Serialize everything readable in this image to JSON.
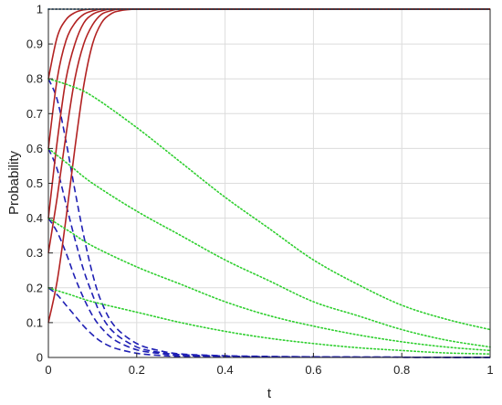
{
  "chart_data": {
    "type": "line",
    "title": "",
    "xlabel": "t",
    "ylabel": "Probability",
    "xlim": [
      0,
      1
    ],
    "ylim": [
      0,
      1
    ],
    "grid": true,
    "x_ticks": [
      "0",
      "0.2",
      "0.4",
      "0.6",
      "0.8",
      "1"
    ],
    "y_ticks": [
      "0",
      "0.1",
      "0.2",
      "0.3",
      "0.4",
      "0.5",
      "0.6",
      "0.7",
      "0.8",
      "0.9",
      "1"
    ],
    "colors": {
      "rising": "#b22222",
      "dashed": "#1f1fb4",
      "dotted": "#2fcf2f"
    },
    "series": [
      {
        "style": "dashed",
        "color": "#1f1fb4",
        "x": [
          0,
          0.02,
          0.04,
          0.06,
          0.08,
          0.1,
          0.12,
          0.15,
          0.2,
          0.25,
          0.3,
          0.4,
          0.5,
          0.7,
          1
        ],
        "y": [
          0.8,
          0.74,
          0.62,
          0.48,
          0.35,
          0.24,
          0.16,
          0.09,
          0.04,
          0.02,
          0.01,
          0.005,
          0.003,
          0.001,
          0
        ]
      },
      {
        "style": "dashed",
        "color": "#1f1fb4",
        "x": [
          0,
          0.02,
          0.04,
          0.06,
          0.08,
          0.1,
          0.12,
          0.15,
          0.2,
          0.25,
          0.3,
          0.4,
          0.5,
          0.7,
          1
        ],
        "y": [
          0.6,
          0.54,
          0.44,
          0.34,
          0.25,
          0.18,
          0.12,
          0.07,
          0.03,
          0.015,
          0.008,
          0.004,
          0.002,
          0.001,
          0
        ]
      },
      {
        "style": "dashed",
        "color": "#1f1fb4",
        "x": [
          0,
          0.02,
          0.04,
          0.06,
          0.08,
          0.1,
          0.12,
          0.15,
          0.2,
          0.25,
          0.3,
          0.4,
          0.5,
          0.7,
          1
        ],
        "y": [
          0.4,
          0.36,
          0.3,
          0.23,
          0.17,
          0.12,
          0.085,
          0.05,
          0.022,
          0.012,
          0.006,
          0.003,
          0.002,
          0.001,
          0
        ]
      },
      {
        "style": "dashed",
        "color": "#1f1fb4",
        "x": [
          0,
          0.02,
          0.04,
          0.06,
          0.08,
          0.1,
          0.12,
          0.15,
          0.2,
          0.25,
          0.3,
          0.4,
          0.5,
          0.7,
          1
        ],
        "y": [
          0.2,
          0.18,
          0.15,
          0.12,
          0.09,
          0.065,
          0.045,
          0.027,
          0.012,
          0.006,
          0.003,
          0.002,
          0.001,
          0.001,
          0
        ]
      },
      {
        "style": "solid",
        "color": "#b22222",
        "x": [
          0,
          0.02,
          0.04,
          0.06,
          0.08,
          0.1,
          0.12,
          0.14,
          0.16,
          0.2,
          0.3,
          1
        ],
        "y": [
          0.8,
          0.92,
          0.97,
          0.99,
          0.998,
          1,
          1,
          1,
          1,
          1,
          1,
          1
        ]
      },
      {
        "style": "solid",
        "color": "#b22222",
        "x": [
          0,
          0.02,
          0.04,
          0.06,
          0.08,
          0.1,
          0.12,
          0.14,
          0.16,
          0.2,
          0.3,
          1
        ],
        "y": [
          0.6,
          0.8,
          0.91,
          0.96,
          0.985,
          0.995,
          1,
          1,
          1,
          1,
          1,
          1
        ]
      },
      {
        "style": "solid",
        "color": "#b22222",
        "x": [
          0,
          0.02,
          0.04,
          0.06,
          0.08,
          0.1,
          0.12,
          0.14,
          0.16,
          0.2,
          0.3,
          1
        ],
        "y": [
          0.4,
          0.62,
          0.8,
          0.9,
          0.96,
          0.985,
          0.995,
          1,
          1,
          1,
          1,
          1
        ]
      },
      {
        "style": "solid",
        "color": "#b22222",
        "x": [
          0,
          0.02,
          0.04,
          0.06,
          0.08,
          0.1,
          0.12,
          0.14,
          0.16,
          0.2,
          0.3,
          1
        ],
        "y": [
          0.3,
          0.46,
          0.64,
          0.8,
          0.9,
          0.955,
          0.985,
          0.995,
          1,
          1,
          1,
          1
        ]
      },
      {
        "style": "solid",
        "color": "#b22222",
        "x": [
          0,
          0.02,
          0.04,
          0.06,
          0.08,
          0.1,
          0.12,
          0.14,
          0.16,
          0.2,
          0.3,
          1
        ],
        "y": [
          0.1,
          0.22,
          0.4,
          0.6,
          0.78,
          0.9,
          0.96,
          0.985,
          0.995,
          1,
          1,
          1
        ]
      },
      {
        "style": "dotted",
        "color": "#2fcf2f",
        "x": [
          0,
          0.05,
          0.1,
          0.2,
          0.3,
          0.4,
          0.5,
          0.6,
          0.7,
          0.8,
          0.9,
          1
        ],
        "y": [
          0.8,
          0.78,
          0.75,
          0.66,
          0.56,
          0.46,
          0.37,
          0.28,
          0.21,
          0.15,
          0.11,
          0.08
        ]
      },
      {
        "style": "dotted",
        "color": "#2fcf2f",
        "x": [
          0,
          0.05,
          0.1,
          0.2,
          0.3,
          0.4,
          0.5,
          0.6,
          0.7,
          0.8,
          0.9,
          1
        ],
        "y": [
          0.6,
          0.55,
          0.5,
          0.42,
          0.35,
          0.28,
          0.22,
          0.16,
          0.12,
          0.08,
          0.05,
          0.03
        ]
      },
      {
        "style": "dotted",
        "color": "#2fcf2f",
        "x": [
          0,
          0.05,
          0.1,
          0.2,
          0.3,
          0.4,
          0.5,
          0.6,
          0.7,
          0.8,
          0.9,
          1
        ],
        "y": [
          0.4,
          0.36,
          0.32,
          0.26,
          0.21,
          0.16,
          0.12,
          0.09,
          0.065,
          0.045,
          0.03,
          0.02
        ]
      },
      {
        "style": "dotted",
        "color": "#2fcf2f",
        "x": [
          0,
          0.05,
          0.1,
          0.2,
          0.3,
          0.4,
          0.5,
          0.6,
          0.7,
          0.8,
          0.9,
          1
        ],
        "y": [
          0.2,
          0.18,
          0.16,
          0.13,
          0.1,
          0.075,
          0.055,
          0.04,
          0.028,
          0.02,
          0.013,
          0.01
        ]
      },
      {
        "style": "dotted",
        "color": "#2fcf2f",
        "x": [
          0,
          0.1,
          0.2,
          0.4,
          0.6,
          0.8,
          1
        ],
        "y": [
          1,
          1,
          1,
          1,
          1,
          1,
          1
        ]
      },
      {
        "style": "dotted",
        "color": "#1f1fb4",
        "x": [
          0,
          0.1,
          0.2,
          0.4,
          0.6,
          0.8,
          1
        ],
        "y": [
          1,
          1,
          1,
          1,
          1,
          1,
          1
        ]
      }
    ]
  }
}
